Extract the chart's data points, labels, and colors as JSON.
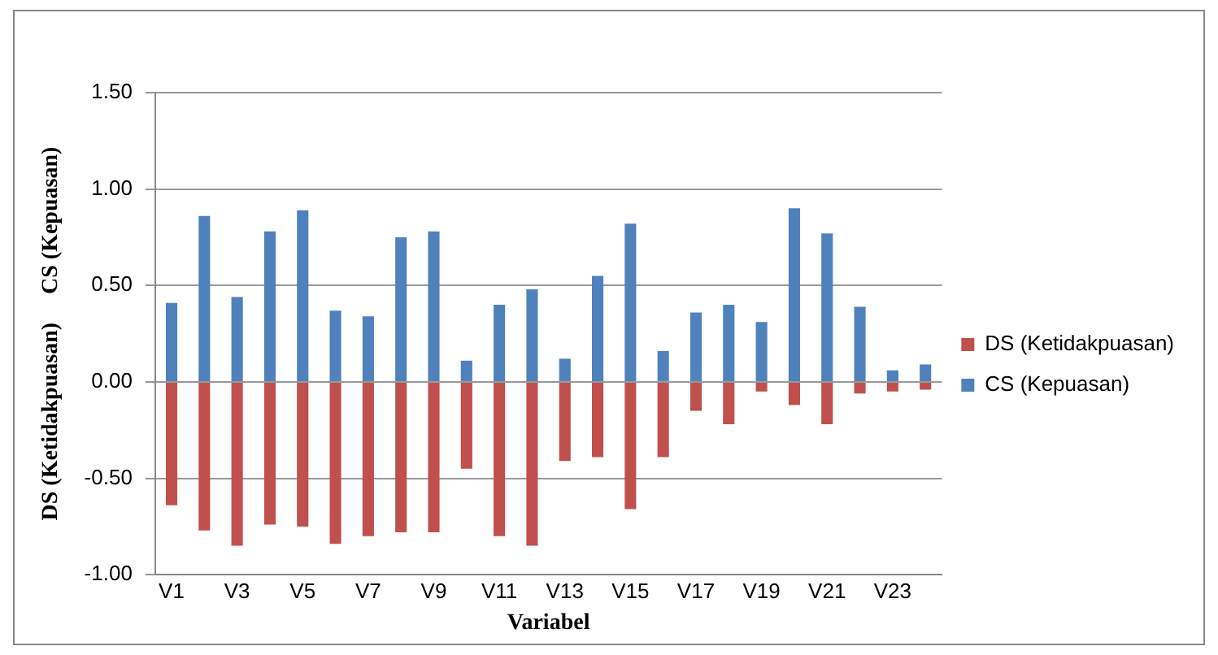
{
  "chart_data": {
    "type": "bar",
    "stacked": true,
    "xlabel": "Variabel",
    "ylabel": "DS (Ketidakpuasan)     CS (Kepuasan)",
    "categories": [
      "V1",
      null,
      "V3",
      null,
      "V5",
      null,
      "V7",
      null,
      "V9",
      null,
      "V11",
      null,
      "V13",
      null,
      "V15",
      null,
      "V17",
      null,
      "V19",
      null,
      "V21",
      null,
      "V23",
      null
    ],
    "series": [
      {
        "name": "DS (Ketidakpuasan)",
        "color": "#c0504d",
        "values": [
          -0.64,
          -0.77,
          -0.85,
          -0.74,
          -0.75,
          -0.84,
          -0.8,
          -0.78,
          -0.78,
          -0.45,
          -0.8,
          -0.85,
          -0.41,
          -0.39,
          -0.66,
          -0.39,
          -0.15,
          -0.22,
          -0.05,
          -0.12,
          -0.22,
          -0.06,
          -0.05,
          -0.04
        ]
      },
      {
        "name": "CS (Kepuasan)",
        "color": "#4f81bd",
        "values": [
          0.41,
          0.86,
          0.44,
          0.78,
          0.89,
          0.37,
          0.34,
          0.75,
          0.78,
          0.11,
          0.4,
          0.48,
          0.12,
          0.55,
          0.82,
          0.16,
          0.36,
          0.4,
          0.31,
          0.9,
          0.77,
          0.39,
          0.06,
          0.09
        ]
      }
    ],
    "ylim": [
      -1,
      1.5
    ],
    "yticks": [
      {
        "value": -1,
        "label": "-1.00"
      },
      {
        "value": -0.5,
        "label": "-0.50"
      },
      {
        "value": 0,
        "label": "0.00"
      },
      {
        "value": 0.5,
        "label": "0.50"
      },
      {
        "value": 1,
        "label": "1.00"
      },
      {
        "value": 1.5,
        "label": "1.50"
      }
    ],
    "grid": "y",
    "legend": "right"
  }
}
